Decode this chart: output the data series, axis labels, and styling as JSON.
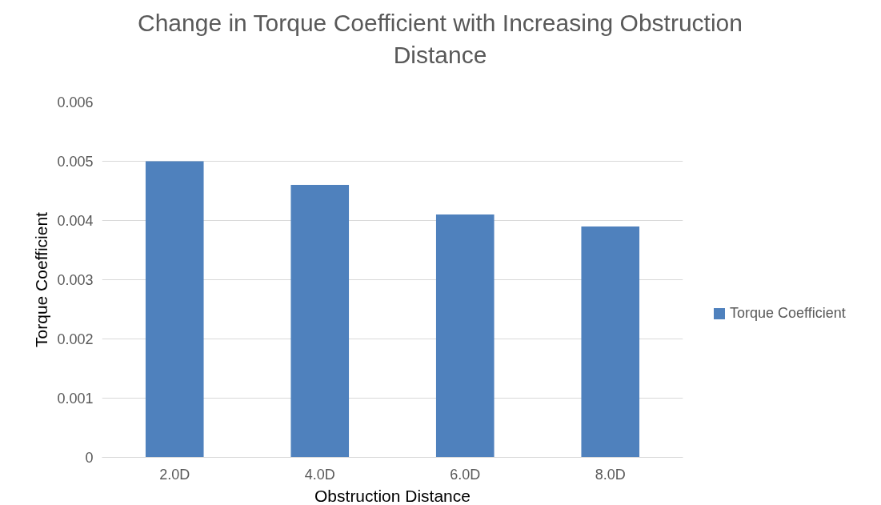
{
  "chart_data": {
    "type": "bar",
    "title": "Change in Torque Coefficient with Increasing Obstruction\nDistance",
    "xlabel": "Obstruction Distance",
    "ylabel": "Torque Coefficient",
    "categories": [
      "2.0D",
      "4.0D",
      "6.0D",
      "8.0D"
    ],
    "series": [
      {
        "name": "Torque Coefficient",
        "color": "#4f81bd",
        "values": [
          0.005,
          0.0046,
          0.0041,
          0.0039
        ]
      }
    ],
    "ylim": [
      0,
      0.006
    ],
    "yticks": [
      0,
      0.001,
      0.002,
      0.003,
      0.004,
      0.005,
      0.006
    ],
    "grid": "y",
    "legend": "right"
  }
}
